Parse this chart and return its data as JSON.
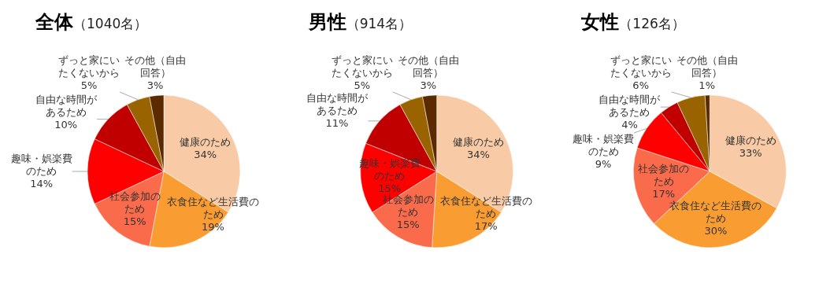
{
  "chart_data": [
    {
      "type": "pie",
      "title": "全体",
      "subtitle": "（1040名）",
      "categories": [
        "健康のため",
        "衣食住など生活費のため",
        "社会参加のため",
        "趣味・娯楽費のため",
        "自由な時間があるため",
        "ずっと家にいたくないから",
        "その他（自由回答）"
      ],
      "values": [
        34,
        19,
        15,
        14,
        10,
        5,
        3
      ],
      "value_labels": [
        "34%",
        "19%",
        "15%",
        "14%",
        "10%",
        "5%",
        "3%"
      ],
      "colors": [
        "#f8cba6",
        "#f99d33",
        "#fa6b4b",
        "#ff0000",
        "#c00000",
        "#996300",
        "#5c2a00"
      ]
    },
    {
      "type": "pie",
      "title": "男性",
      "subtitle": "（914名）",
      "categories": [
        "健康のため",
        "衣食住など生活費のため",
        "社会参加のため",
        "趣味・娯楽費のため",
        "自由な時間があるため",
        "ずっと家にいたくないから",
        "その他（自由回答）"
      ],
      "values": [
        34,
        17,
        15,
        15,
        11,
        5,
        3
      ],
      "value_labels": [
        "34%",
        "17%",
        "15%",
        "15%",
        "11%",
        "5%",
        "3%"
      ],
      "colors": [
        "#f8cba6",
        "#f99d33",
        "#fa6b4b",
        "#ff0000",
        "#c00000",
        "#996300",
        "#5c2a00"
      ]
    },
    {
      "type": "pie",
      "title": "女性",
      "subtitle": "（126名）",
      "categories": [
        "健康のため",
        "衣食住など生活費のため",
        "社会参加のため",
        "趣味・娯楽費のため",
        "自由な時間があるため",
        "ずっと家にいたくないから",
        "その他（自由回答）"
      ],
      "values": [
        33,
        30,
        17,
        9,
        4,
        6,
        1
      ],
      "value_labels": [
        "33%",
        "30%",
        "17%",
        "9%",
        "4%",
        "6%",
        "1%"
      ],
      "colors": [
        "#f8cba6",
        "#f99d33",
        "#fa6b4b",
        "#ff0000",
        "#c00000",
        "#996300",
        "#5c2a00"
      ]
    }
  ]
}
